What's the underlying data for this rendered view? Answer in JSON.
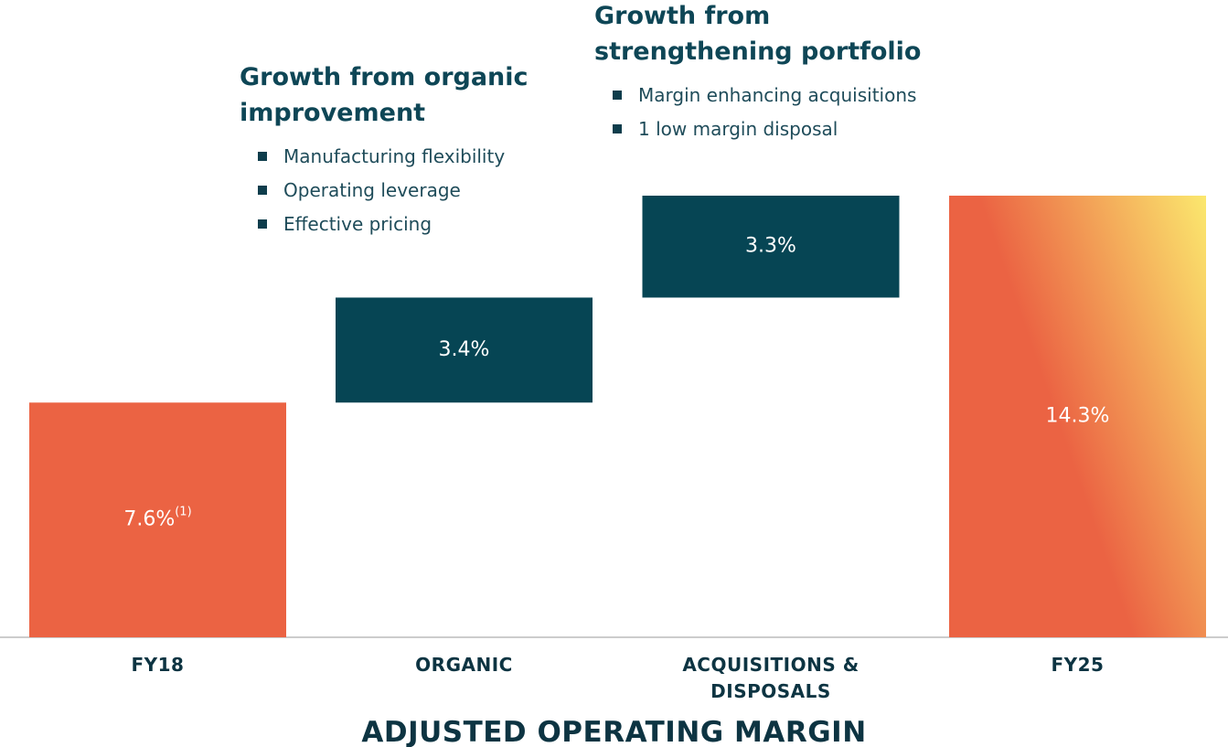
{
  "chart_data": {
    "type": "waterfall",
    "title": "ADJUSTED OPERATING MARGIN",
    "categories": [
      "FY18",
      "ORGANIC",
      "ACQUISITIONS & DISPOSALS",
      "FY25"
    ],
    "values": [
      7.6,
      3.4,
      3.3,
      14.3
    ],
    "value_labels": [
      "7.6%",
      "3.4%",
      "3.3%",
      "14.3%"
    ],
    "value_label_superscripts": [
      "(1)",
      null,
      null,
      null
    ],
    "bar_kinds": [
      "total",
      "increase",
      "increase",
      "total"
    ],
    "colors": [
      "#eb6343",
      "#064554",
      "#064554",
      "#eb6343"
    ],
    "last_total_gradient": "#fbe86e",
    "annotations": [
      {
        "title_lines": [
          "Growth from organic",
          "improvement"
        ],
        "bullets": [
          "Manufacturing flexibility",
          "Operating leverage",
          "Effective pricing"
        ]
      },
      {
        "title_lines": [
          "Growth from",
          "strengthening portfolio"
        ],
        "bullets": [
          "Margin enhancing acquisitions",
          "1 low margin disposal"
        ]
      }
    ]
  }
}
